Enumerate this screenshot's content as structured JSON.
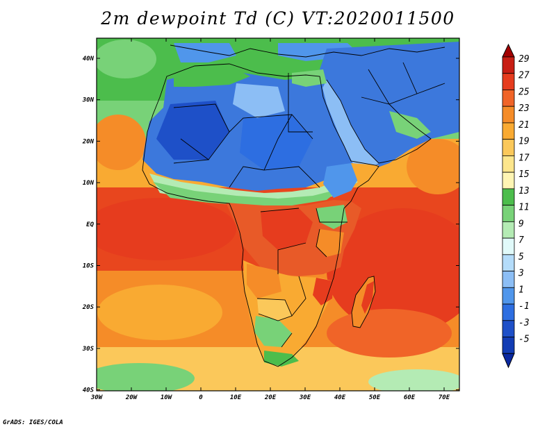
{
  "title": "2m dewpoint Td (C) VT:2020011500",
  "credit": "GrADS: IGES/COLA",
  "lat_labels": [
    "40N",
    "30N",
    "20N",
    "10N",
    "EQ",
    "10S",
    "20S",
    "30S",
    "40S"
  ],
  "lon_labels": [
    "30W",
    "20W",
    "10W",
    "0",
    "10E",
    "20E",
    "30E",
    "40E",
    "50E",
    "60E",
    "70E"
  ],
  "colorbar": {
    "labels": [
      "29",
      "27",
      "25",
      "23",
      "21",
      "19",
      "17",
      "15",
      "13",
      "11",
      "9",
      "7",
      "5",
      "3",
      "1",
      "-1",
      "-3",
      "-5"
    ],
    "colors": [
      "#a30000",
      "#c81e14",
      "#e63c1e",
      "#f06428",
      "#f58c28",
      "#f9aa32",
      "#fbc85a",
      "#fde68c",
      "#fff5b4",
      "#4cbd4c",
      "#78d278",
      "#b4ebb4",
      "#e1fafa",
      "#b4dcfa",
      "#8cbef5",
      "#5096eb",
      "#2d6ee1",
      "#1e50c8",
      "#123cb4",
      "#0a28a0"
    ]
  },
  "map_colors": {
    "ocean_tropical": "#e8461e",
    "ocean_subtropical": "#f58c28",
    "ocean_midlat": "#fbc85a",
    "sahara": "#3c78dc",
    "sahel": "#8cbef5",
    "med_coast": "#4cbd4c",
    "equatorial_land": "#e85a28",
    "southern_africa": "#f9aa32",
    "south_high": "#78d278"
  }
}
